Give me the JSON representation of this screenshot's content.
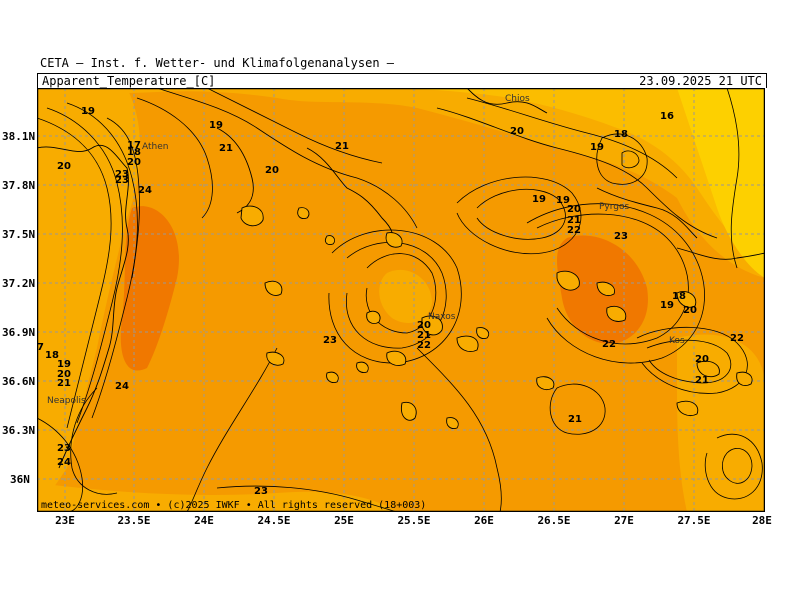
{
  "header": {
    "source": "CETA — Inst. f. Wetter- und Klimafolgenanalysen —",
    "parameter": "Apparent_Temperature_[C]",
    "valid_time": "23.09.2025 21 UTC"
  },
  "footer": {
    "credit": "meteo-services.com • (c)2025 IWKF • All rights reserved (18+003)"
  },
  "axes": {
    "latitudes": [
      "38.1N",
      "37.8N",
      "37.5N",
      "37.2N",
      "36.9N",
      "36.6N",
      "36.3N",
      "36N"
    ],
    "longitudes": [
      "23E",
      "23.5E",
      "24E",
      "24.5E",
      "25E",
      "25.5E",
      "26E",
      "26.5E",
      "27E",
      "27.5E",
      "28E"
    ]
  },
  "places": [
    {
      "name": "Athen"
    },
    {
      "name": "Chios"
    },
    {
      "name": "Pyrgos"
    },
    {
      "name": "Naxos"
    },
    {
      "name": "Kos"
    },
    {
      "name": "Neapolis"
    }
  ],
  "contour_labels": [
    "19",
    "19",
    "20",
    "21",
    "20",
    "21",
    "24",
    "17",
    "18",
    "20",
    "23",
    "23",
    "20",
    "19",
    "18",
    "16",
    "19",
    "20",
    "21",
    "22",
    "23",
    "19",
    "20",
    "21",
    "22",
    "23",
    "22",
    "18",
    "19",
    "20",
    "22",
    "20",
    "21",
    "21",
    "7",
    "18",
    "19",
    "20",
    "21",
    "24",
    "23",
    "24",
    "23"
  ],
  "colors": {
    "warm_deep": "#f07800",
    "warm": "#f59a00",
    "mid": "#f8ac00",
    "light": "#fbbd00",
    "pale": "#fdd000",
    "frame": "#000000"
  }
}
